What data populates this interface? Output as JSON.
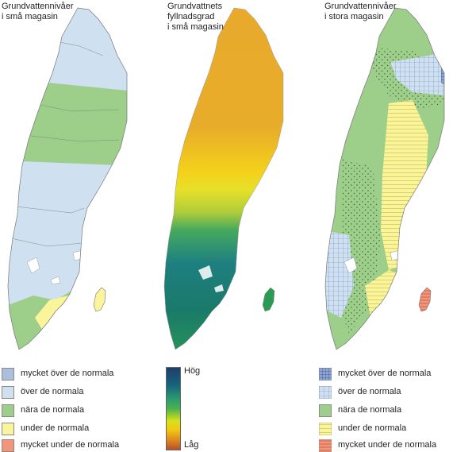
{
  "panels": [
    {
      "title": "Grundvattennivåer\ni små magasin"
    },
    {
      "title": "Grundvattnets\nfyllnadsgrad\ni små magasin"
    },
    {
      "title": "Grundvattennivåer\ni stora magasin"
    }
  ],
  "legend_small": {
    "items": [
      {
        "label": "mycket över de normala",
        "color": "#a9bfdc"
      },
      {
        "label": "över de normala",
        "color": "#cfe1f1"
      },
      {
        "label": "nära de normala",
        "color": "#9dcf8a"
      },
      {
        "label": "under de normala",
        "color": "#faf59a"
      },
      {
        "label": "mycket under de normala",
        "color": "#f2957a"
      }
    ]
  },
  "legend_fill": {
    "high_label": "Hög",
    "low_label": "Låg"
  },
  "legend_large": {
    "items": [
      {
        "label": "mycket över de normala",
        "color": "#a9bfdc",
        "pattern": "dense-grid"
      },
      {
        "label": "över de normala",
        "color": "#cfe1f1",
        "pattern": "grid"
      },
      {
        "label": "nära de normala",
        "color": "#9dcf8a",
        "pattern": "none"
      },
      {
        "label": "under de normala",
        "color": "#faf59a",
        "pattern": "hlines"
      },
      {
        "label": "mycket under de normala",
        "color": "#f2957a",
        "pattern": "hlines"
      }
    ]
  }
}
